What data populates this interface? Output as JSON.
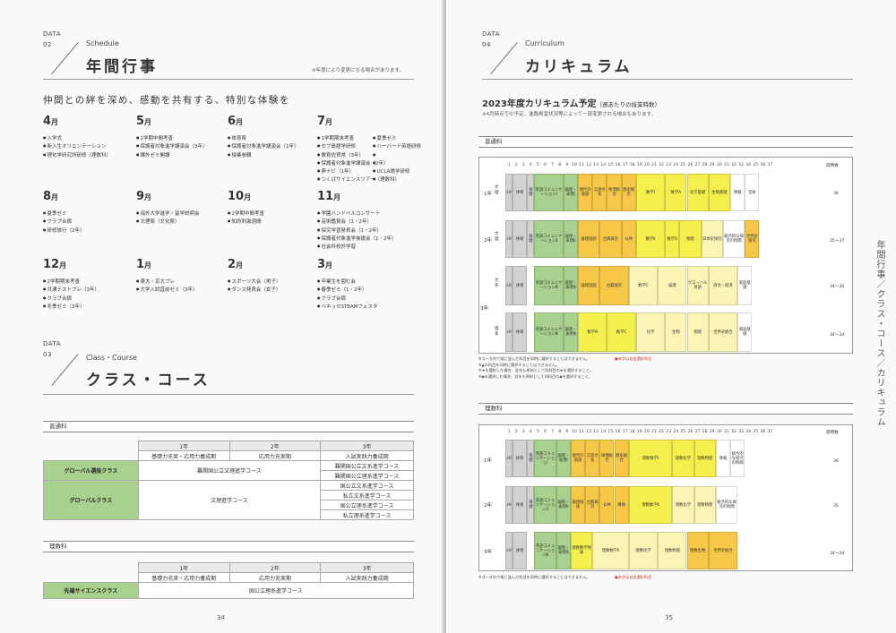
{
  "left": {
    "data_label": "DATA",
    "section_num": "02",
    "section_en": "Schedule",
    "section_jp": "年間行事",
    "note": "※年度により変更になる場合があります。",
    "lead": "仲間との絆を深め、感動を共有する、特別な体験を",
    "months": [
      {
        "m": "4",
        "unit": "月",
        "items": [
          "入学式",
          "新入生オリエンテーション",
          "理化学研究所研修（理数科）"
        ]
      },
      {
        "m": "5",
        "unit": "月",
        "items": [
          "1学期中間考査",
          "保護者対象進学講演会（3年）",
          "課外ゼミ開講"
        ]
      },
      {
        "m": "6",
        "unit": "月",
        "items": [
          "体育祭",
          "保護者対象進学講演会（1年）",
          "授業参観"
        ]
      },
      {
        "m": "7",
        "unit": "月",
        "items": [
          "1学期期末考査",
          "夏季ゼミ",
          "セブ島語学研修",
          "ハーバード英語研修",
          "教育佐賀県（3年）",
          "保護者対象進学講演会（2年）",
          "夢ナビ（1年）",
          "UCLA語学研修",
          "つくばサイエンスツアー（理数科）"
        ]
      },
      {
        "m": "8",
        "unit": "月",
        "items": [
          "夏季ゼミ",
          "クラブ合宿",
          "研修旅行（2年）"
        ]
      },
      {
        "m": "9",
        "unit": "月",
        "items": [
          "海外大学進学・留学説明会",
          "文理祭（文化祭）"
        ]
      },
      {
        "m": "10",
        "unit": "月",
        "items": [
          "2学期中間考査",
          "知的刺激週間"
        ]
      },
      {
        "m": "11",
        "unit": "月",
        "items": [
          "学園ハンドベルコンサート",
          "芸術鑑賞会（1・2年）",
          "探究学習発表会（1・2年）",
          "保護者対象進学後援会（1・2年）",
          "社会科校外学習"
        ]
      },
      {
        "m": "12",
        "unit": "月",
        "items": [
          "2学期期末考査",
          "共通テストプレ（3年）",
          "クラブ合宿",
          "冬季ゼミ（3年）"
        ]
      },
      {
        "m": "1",
        "unit": "月",
        "items": [
          "東大・京大プレ",
          "大学入試直前ゼミ（3年）"
        ]
      },
      {
        "m": "2",
        "unit": "月",
        "items": [
          "スポーツ大会（男子）",
          "ダンス発表会（女子）"
        ]
      },
      {
        "m": "3",
        "unit": "月",
        "items": [
          "卒業生を囲む会",
          "春季ゼミ（1・2年）",
          "クラブ合宿",
          "ベネッセSTEAMフェスタ"
        ]
      }
    ],
    "section2": {
      "data_label": "DATA",
      "num": "03",
      "en": "Class・Course",
      "jp": "クラス・コース"
    },
    "futsu_label": "普通科",
    "risu_label": "理数科",
    "year_headers": [
      "1年",
      "2年",
      "3年"
    ],
    "phase_headers": [
      "基礎力充実・応用力養成期",
      "応用力充実期",
      "入試実践力養成期"
    ],
    "futsu_rows": {
      "class1": "グローバル選抜クラス",
      "class2": "グローバルクラス",
      "course1": "難関国公立文理進学コース",
      "course2": "文理進学コース",
      "y3": [
        "難関国公立文系進学コース",
        "難関国公立理系進学コース",
        "国公立文系進学コース",
        "私立文系進学コース",
        "国公立理系進学コース",
        "私立理系進学コース"
      ]
    },
    "risu_rows": {
      "class1": "先端サイエンスクラス",
      "course1": "国公立理系進学コース"
    },
    "page_num": "34"
  },
  "right": {
    "data_label": "DATA",
    "section_num": "04",
    "section_en": "Curriculum",
    "section_jp": "カリキュラム",
    "plan_title": "2023年度カリキュラム予定",
    "plan_sub": "（週あたりの授業時数）",
    "plan_note": "※4月時点での予定。進路希望状況等によって一部変更される場合もあります。",
    "futsu_label": "普通科",
    "risu_label": "理数科",
    "hours_label": "週時数",
    "period_nums": [
      "1",
      "2",
      "3",
      "4",
      "5",
      "6",
      "7",
      "8",
      "9",
      "10",
      "11",
      "12",
      "13",
      "14",
      "15",
      "16",
      "17",
      "18",
      "19",
      "20",
      "21",
      "22",
      "23",
      "24",
      "25",
      "26",
      "27",
      "28",
      "29",
      "30",
      "31",
      "32",
      "33",
      "34",
      "35",
      "36",
      "37"
    ],
    "rows_futsu": [
      {
        "label": "1年",
        "sub": "文理",
        "hours": "36"
      },
      {
        "label": "2年",
        "sub": "文理",
        "hours": "35〜37"
      },
      {
        "label": "",
        "sub": "文系",
        "hours": "34〜36"
      },
      {
        "label": "3年",
        "sub": "",
        "hours": ""
      },
      {
        "label": "",
        "sub": "理系",
        "hours": "34〜34"
      }
    ],
    "rows_risu": [
      {
        "label": "1年",
        "hours": "36"
      },
      {
        "label": "2年",
        "hours": "35"
      },
      {
        "label": "3年",
        "hours": "34〜34"
      }
    ],
    "subjects": {
      "lhr": "LHR",
      "pe": "体育",
      "hoken": "保健",
      "eng1": "英語コミュニケーションⅠ",
      "eng2": "英語コミュニケーションⅡ",
      "eng3": "英語コミュニケーションⅢ",
      "ronri": "論理・表現Ⅰ",
      "ronri2": "論理・表現Ⅱ",
      "ronri3": "論理・表現Ⅲ",
      "gendai": "現代の国語",
      "gengo": "言語文化",
      "chiri": "地理総合",
      "rekishi": "歴史総合",
      "math1": "数学Ⅰ",
      "mathA": "数学A",
      "kagaku": "化学基礎",
      "seibutsu": "生物基礎",
      "butsuri": "物理基礎",
      "jouhou": "情報",
      "geijutsu": "芸術",
      "ronkoku": "論理国語",
      "koten": "古典探究",
      "kokyou": "公共",
      "math2": "数学Ⅱ",
      "mathB": "数学B",
      "mathC": "数学C",
      "math3": "数学Ⅲ",
      "kagaku2": "化学",
      "butsuri2": "物理",
      "seibutsu2": "生物",
      "nihonshi": "日本史探究",
      "sekaishi": "世界史探究",
      "sougou": "総合的な探究の時間",
      "global": "グローバル英語",
      "rinri": "倫理",
      "seikei": "政治・経済",
      "risusuugaku1": "理数数学Ⅰ",
      "risusuugaku2": "理数数学Ⅱ",
      "risusuugakut": "理数数学特論",
      "risukagaku": "理数化学",
      "risubutsuri": "理数物理",
      "risuseibutsu": "理数生物",
      "sekaishiz": "世界史総合",
      "kateikiso": "家庭基礎"
    },
    "footnotes_futsu": [
      "※コース内で縦に並んだ科目を同時に選択することはできません。",
      "※▲の科目を同時に選択することはできません。",
      "※★を選択した場合、翌年も原則として同科目の★を選択すること。",
      "※◆を選択した場合、翌年も原則として同科目の◆を選択すること。"
    ],
    "req_note": "●赤字は自由選択科目",
    "footnotes_risu": [
      "※コース内で縦に並んだ科目を同時に選択することはできません。"
    ],
    "vertical": "年間行事／クラス・コース／カリキュラム",
    "page_num": "35"
  }
}
